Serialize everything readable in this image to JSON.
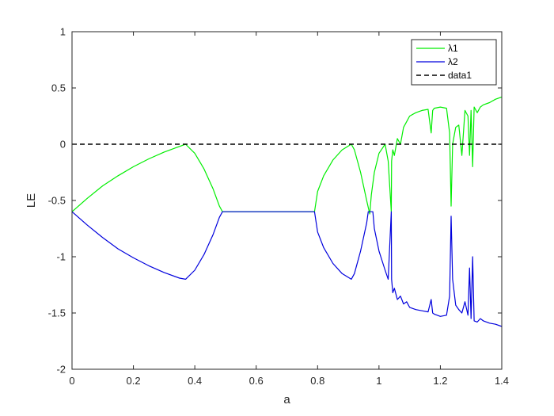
{
  "chart_data": {
    "type": "line",
    "title": "",
    "xlabel": "a",
    "ylabel": "LE",
    "xlim": [
      0,
      1.4
    ],
    "ylim": [
      -2,
      1
    ],
    "xticks": [
      0,
      0.2,
      0.4,
      0.6,
      0.8,
      1,
      1.2,
      1.4
    ],
    "xtick_labels": [
      "0",
      "0.2",
      "0.4",
      "0.6",
      "0.8",
      "1",
      "1.2",
      "1.4"
    ],
    "yticks": [
      -2,
      -1.5,
      -1,
      -0.5,
      0,
      0.5,
      1
    ],
    "ytick_labels": [
      "-2",
      "-1.5",
      "-1",
      "-0.5",
      "0",
      "0.5",
      "1"
    ],
    "grid": false,
    "legend_position": "top-right",
    "series": [
      {
        "name": "λ1",
        "color": "#00ee00",
        "style": "solid",
        "x": [
          0,
          0.05,
          0.1,
          0.15,
          0.2,
          0.25,
          0.3,
          0.35,
          0.37,
          0.4,
          0.43,
          0.46,
          0.48,
          0.49,
          0.5,
          0.6,
          0.7,
          0.79,
          0.8,
          0.82,
          0.85,
          0.88,
          0.91,
          0.92,
          0.94,
          0.96,
          0.97,
          0.975,
          0.985,
          1.0,
          1.02,
          1.03,
          1.04,
          1.041,
          1.045,
          1.05,
          1.06,
          1.07,
          1.08,
          1.09,
          1.1,
          1.12,
          1.14,
          1.16,
          1.17,
          1.175,
          1.18,
          1.2,
          1.22,
          1.23,
          1.235,
          1.24,
          1.25,
          1.26,
          1.27,
          1.28,
          1.29,
          1.295,
          1.3,
          1.305,
          1.31,
          1.32,
          1.33,
          1.34,
          1.36,
          1.38,
          1.4
        ],
        "y": [
          -0.6,
          -0.48,
          -0.37,
          -0.28,
          -0.2,
          -0.13,
          -0.07,
          -0.02,
          0,
          -0.08,
          -0.22,
          -0.4,
          -0.55,
          -0.6,
          -0.6,
          -0.6,
          -0.6,
          -0.6,
          -0.42,
          -0.28,
          -0.14,
          -0.05,
          0,
          -0.05,
          -0.25,
          -0.5,
          -0.62,
          -0.45,
          -0.25,
          -0.08,
          0,
          -0.15,
          -0.6,
          -0.15,
          -0.05,
          -0.1,
          0.05,
          0.0,
          0.15,
          0.2,
          0.25,
          0.28,
          0.3,
          0.31,
          0.1,
          0.3,
          0.32,
          0.33,
          0.32,
          0.1,
          -0.55,
          0.0,
          0.15,
          0.17,
          -0.1,
          0.3,
          0.25,
          -0.1,
          0.3,
          -0.2,
          0.33,
          0.28,
          0.33,
          0.35,
          0.37,
          0.4,
          0.42
        ]
      },
      {
        "name": "λ2",
        "color": "#0000dd",
        "style": "solid",
        "x": [
          0,
          0.05,
          0.1,
          0.15,
          0.2,
          0.25,
          0.3,
          0.35,
          0.37,
          0.4,
          0.43,
          0.46,
          0.48,
          0.49,
          0.5,
          0.6,
          0.7,
          0.79,
          0.8,
          0.82,
          0.85,
          0.88,
          0.91,
          0.92,
          0.94,
          0.96,
          0.965,
          0.97,
          0.98,
          0.985,
          1.0,
          1.02,
          1.03,
          1.04,
          1.041,
          1.045,
          1.05,
          1.06,
          1.07,
          1.08,
          1.09,
          1.1,
          1.12,
          1.14,
          1.16,
          1.17,
          1.175,
          1.18,
          1.2,
          1.22,
          1.23,
          1.235,
          1.24,
          1.25,
          1.26,
          1.27,
          1.28,
          1.29,
          1.295,
          1.3,
          1.305,
          1.31,
          1.32,
          1.33,
          1.34,
          1.36,
          1.38,
          1.4
        ],
        "y": [
          -0.6,
          -0.72,
          -0.83,
          -0.93,
          -1.01,
          -1.08,
          -1.14,
          -1.19,
          -1.2,
          -1.12,
          -0.98,
          -0.8,
          -0.65,
          -0.6,
          -0.6,
          -0.6,
          -0.6,
          -0.6,
          -0.78,
          -0.92,
          -1.06,
          -1.15,
          -1.2,
          -1.15,
          -0.95,
          -0.7,
          -0.6,
          -0.6,
          -0.6,
          -0.75,
          -0.95,
          -1.12,
          -1.2,
          -0.6,
          -1.2,
          -1.32,
          -1.28,
          -1.38,
          -1.35,
          -1.42,
          -1.4,
          -1.45,
          -1.47,
          -1.48,
          -1.49,
          -1.38,
          -1.5,
          -1.51,
          -1.53,
          -1.52,
          -1.35,
          -0.64,
          -1.2,
          -1.43,
          -1.47,
          -1.5,
          -1.4,
          -1.52,
          -1.1,
          -1.55,
          -1.0,
          -1.57,
          -1.58,
          -1.55,
          -1.57,
          -1.59,
          -1.6,
          -1.62
        ]
      },
      {
        "name": "data1",
        "color": "#000000",
        "style": "dashed",
        "x": [
          0,
          1.4
        ],
        "y": [
          0,
          0
        ]
      }
    ]
  }
}
